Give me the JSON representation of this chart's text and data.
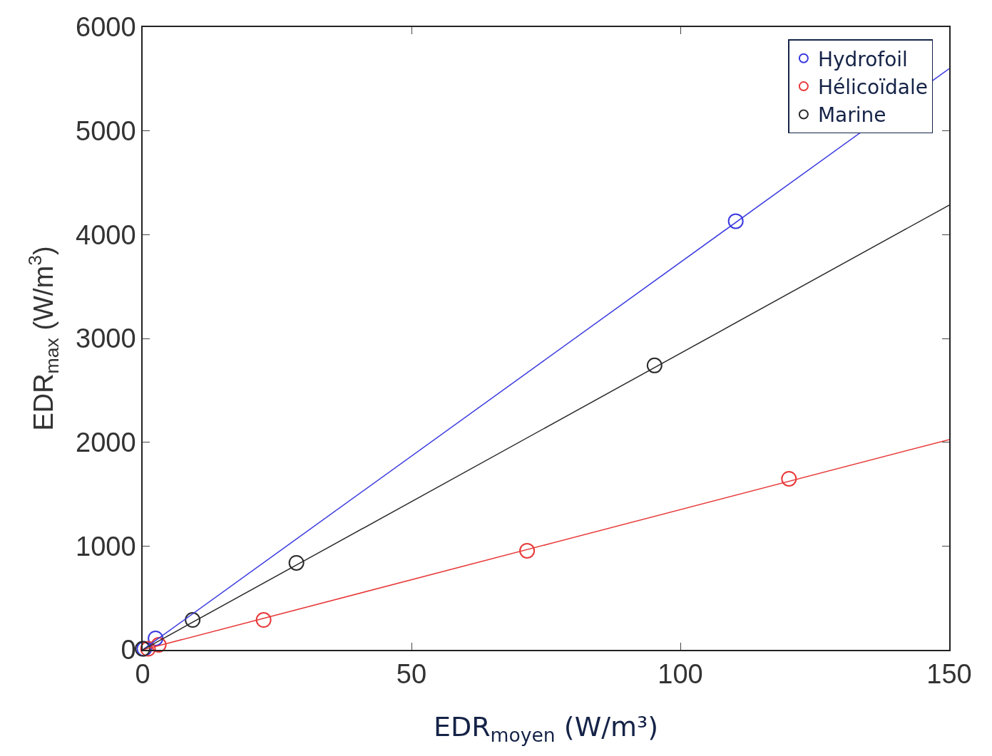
{
  "chart_data": {
    "type": "scatter",
    "xlabel": "EDR$_{moyen}$ (W/m³)",
    "ylabel": "EDR$_{max}$ (W/m$^{3}$)",
    "xlim": [
      0,
      150
    ],
    "xticks": [
      0,
      50,
      100,
      150
    ],
    "ylim": [
      0,
      6000
    ],
    "yticks": [
      0,
      1000,
      2000,
      3000,
      4000,
      5000,
      6000
    ],
    "legend": "top right",
    "marker": "circle",
    "series": [
      {
        "name": "Hydrofoil",
        "color": "#3a3adf",
        "x": [
          0.3,
          2.4,
          110.3
        ],
        "values": [
          10,
          110,
          4130
        ]
      },
      {
        "name": "Hélicoïdale",
        "color": "#e83a3a",
        "x": [
          1,
          3.0,
          22.5,
          71.5,
          120.2
        ],
        "values": [
          10,
          48,
          288,
          955,
          1648
        ]
      },
      {
        "name": "Marine",
        "color": "#2a2a2a",
        "x": [
          0,
          9.3,
          28.6,
          95.2
        ],
        "values": [
          10,
          288,
          838,
          2740
        ]
      },
      {
        "type": "line",
        "marker": "none",
        "color": "#3a3adf",
        "x": [
          0,
          150
        ],
        "values": [
          0,
          5600
        ]
      },
      {
        "type": "line",
        "marker": "none",
        "color": "#e83a3a",
        "x": [
          0,
          150
        ],
        "values": [
          0,
          2026
        ]
      },
      {
        "type": "line",
        "marker": "none",
        "color": "#2a2a2a",
        "x": [
          0,
          150
        ],
        "values": [
          0,
          4285
        ]
      }
    ]
  }
}
